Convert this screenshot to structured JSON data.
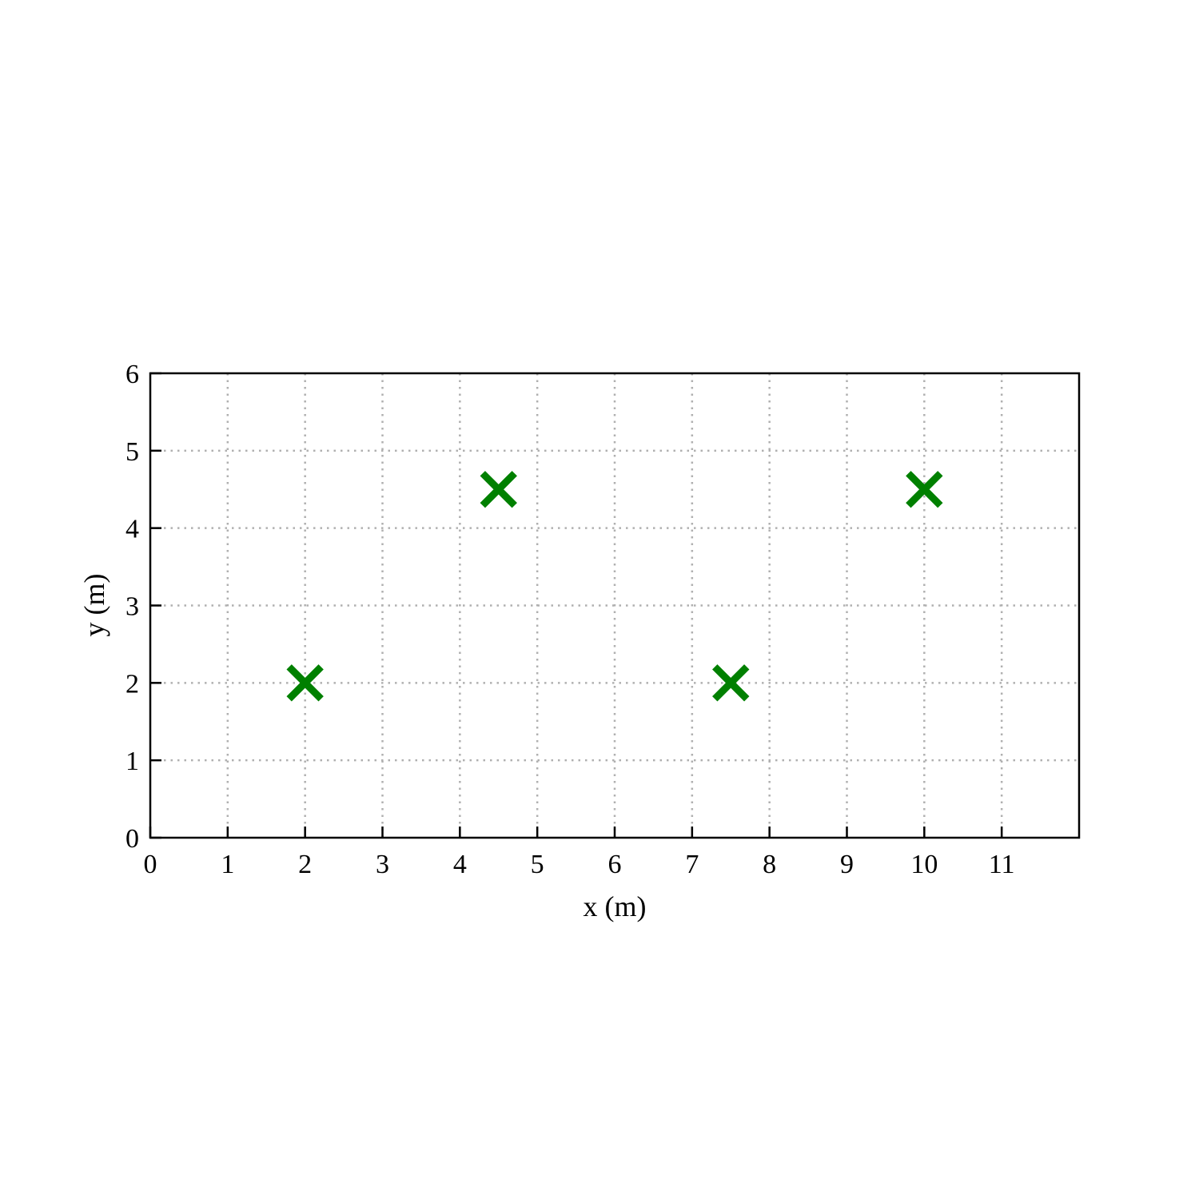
{
  "chart_data": {
    "type": "scatter",
    "title": "",
    "xlabel": "x (m)",
    "ylabel": "y (m)",
    "xlim": [
      0,
      12
    ],
    "ylim": [
      0,
      6
    ],
    "x_ticks": [
      0,
      1,
      2,
      3,
      4,
      5,
      6,
      7,
      8,
      9,
      10,
      11
    ],
    "y_ticks": [
      0,
      1,
      2,
      3,
      4,
      5,
      6
    ],
    "grid": true,
    "grid_style": "dotted",
    "marker": "x",
    "marker_color": "#008000",
    "series": [
      {
        "x": [
          2,
          4.5,
          7.5,
          10
        ],
        "y": [
          2,
          4.5,
          2,
          4.5
        ]
      }
    ]
  }
}
